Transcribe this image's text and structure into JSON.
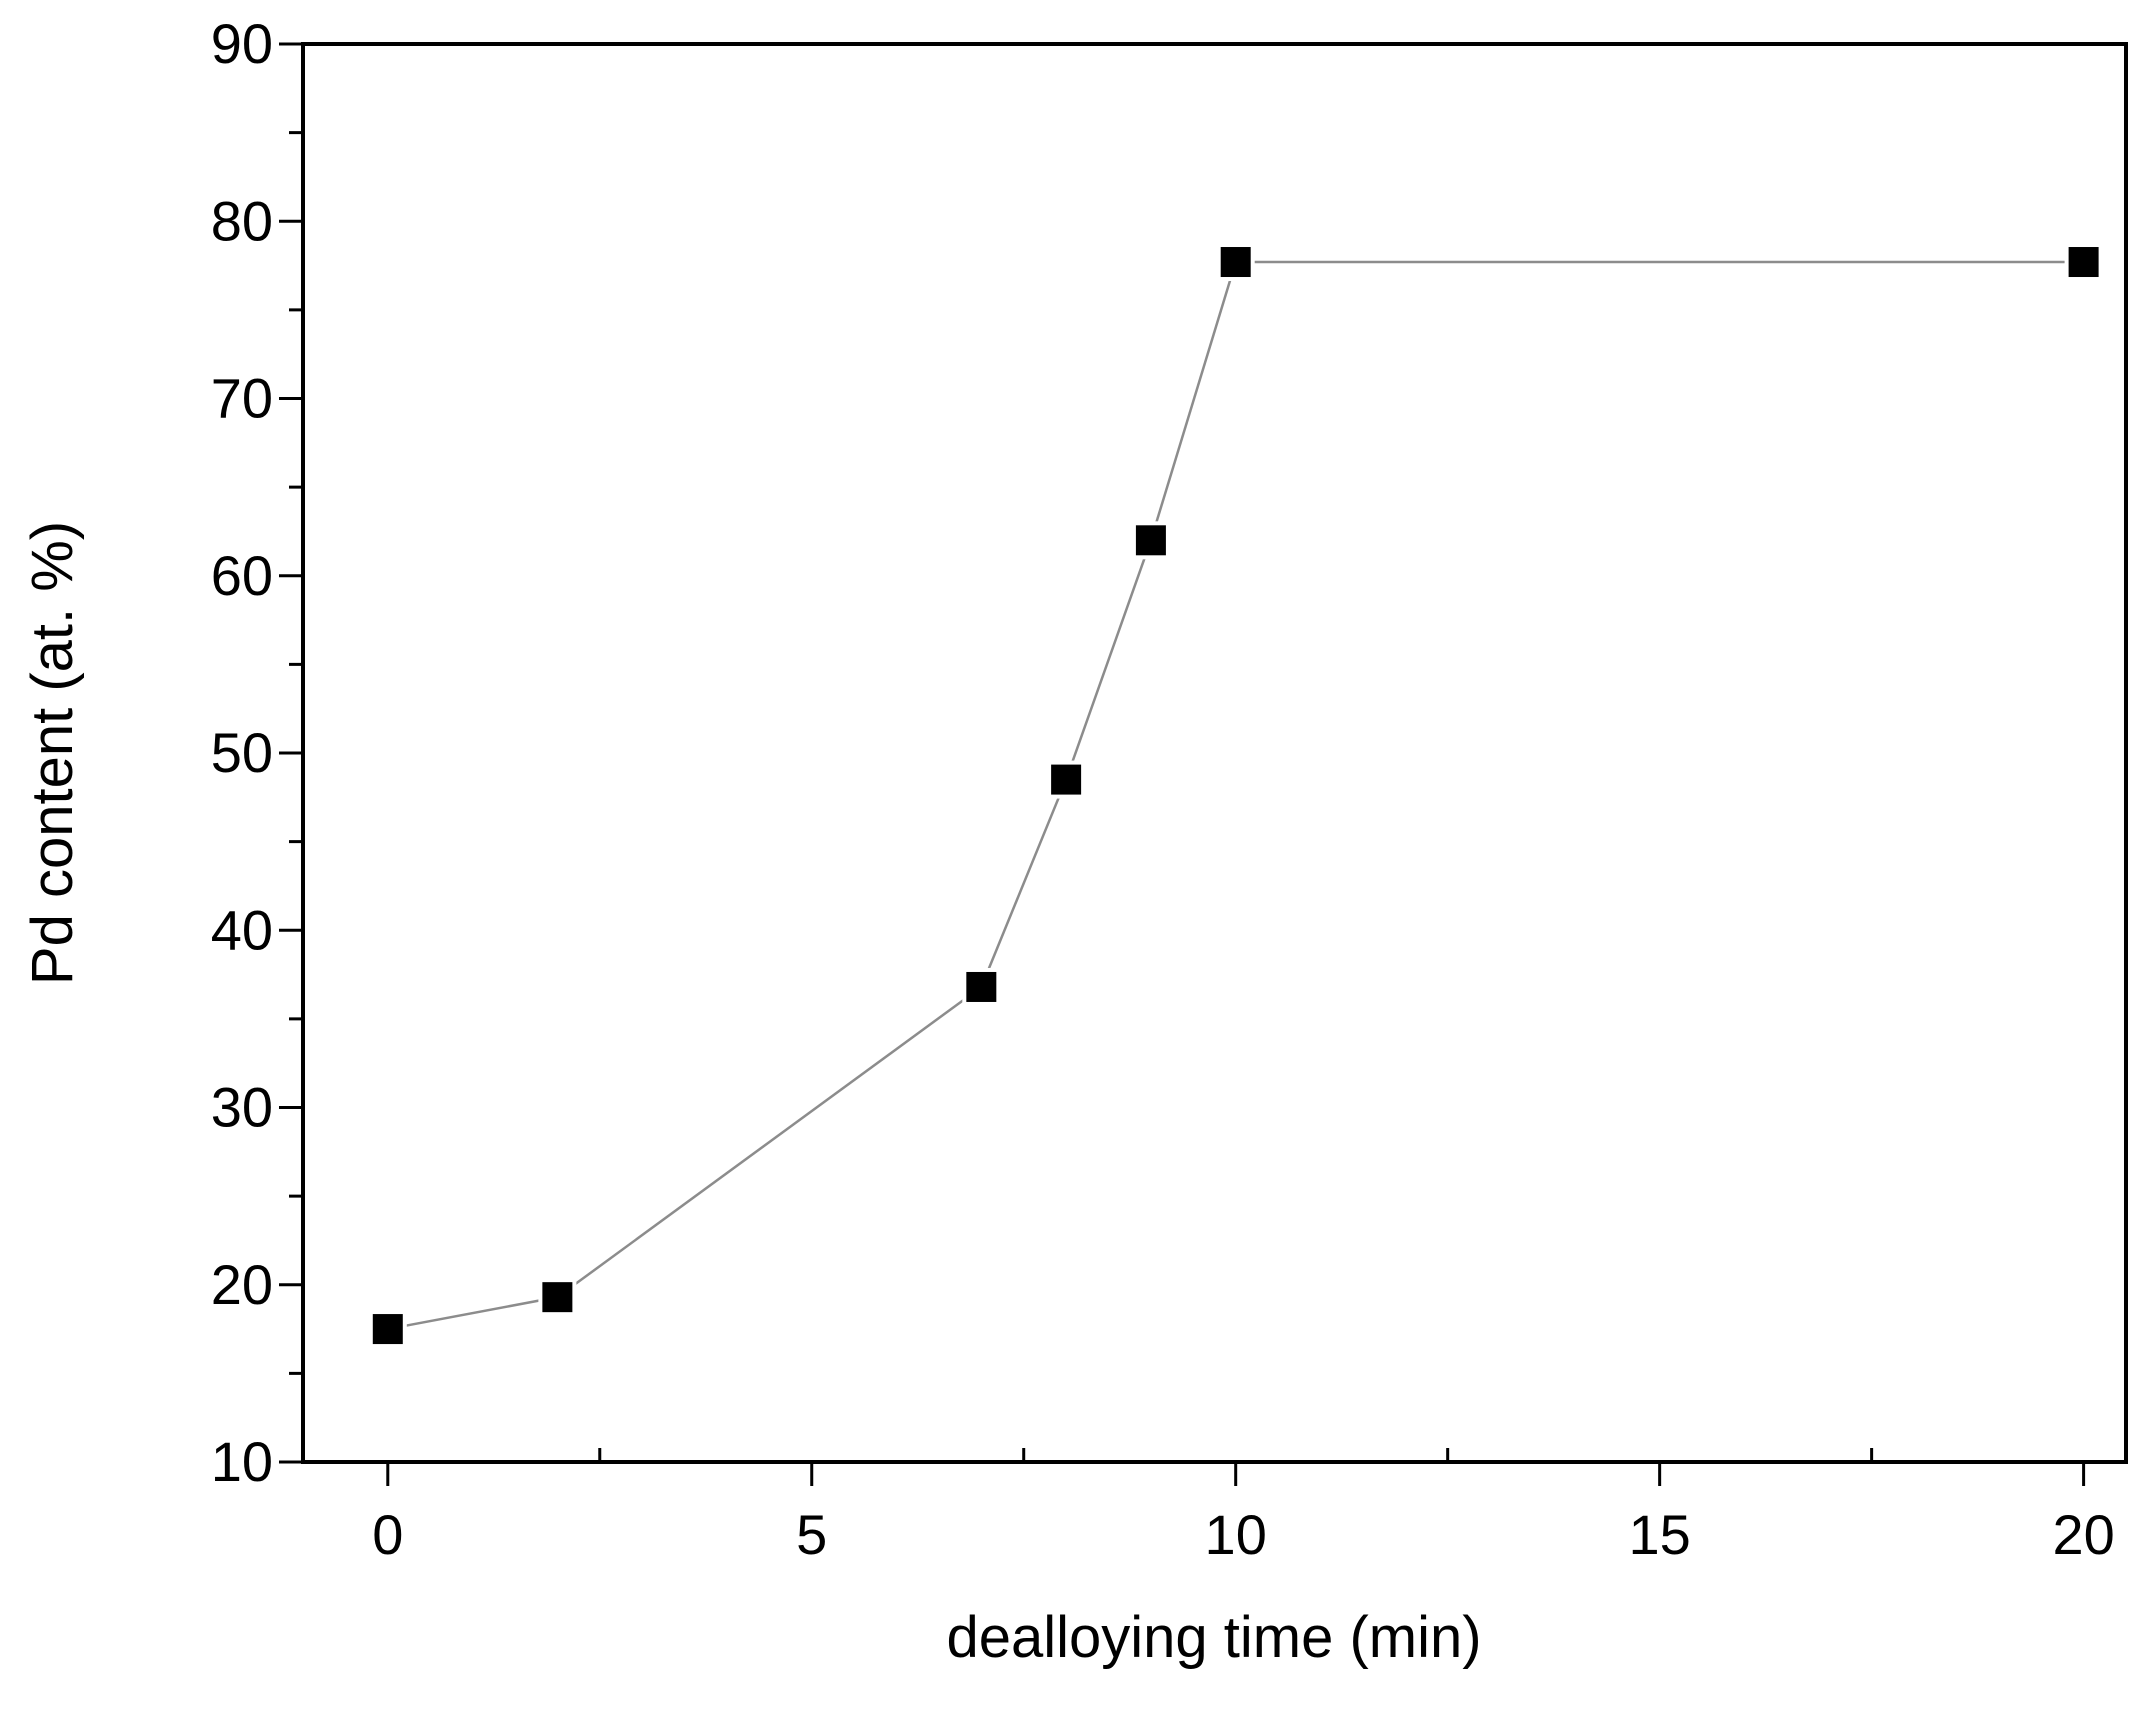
{
  "chart_data": {
    "type": "line",
    "title": "",
    "xlabel": "dealloying time (min)",
    "ylabel": "Pd content (at. %)",
    "xlim": [
      -1,
      20.5
    ],
    "ylim": [
      10,
      90
    ],
    "x_major_ticks": [
      0,
      5,
      10,
      15,
      20
    ],
    "x_minor_ticks": [
      2.5,
      7.5,
      12.5,
      17.5
    ],
    "y_major_ticks": [
      10,
      20,
      30,
      40,
      50,
      60,
      70,
      80,
      90
    ],
    "y_minor_ticks": [
      15,
      25,
      35,
      45,
      55,
      65,
      75,
      85
    ],
    "grid": false,
    "legend": "none",
    "marker": "filled-square",
    "series": [
      {
        "x": [
          0,
          2,
          7,
          8,
          9,
          10,
          20
        ],
        "y": [
          17.5,
          19.3,
          36.8,
          48.5,
          62.0,
          77.7,
          77.7
        ]
      }
    ],
    "colors": {
      "marker_fill": "#000000",
      "marker_stroke": "#ffffff",
      "line": "#8c8c8c",
      "axis": "#000000"
    }
  }
}
